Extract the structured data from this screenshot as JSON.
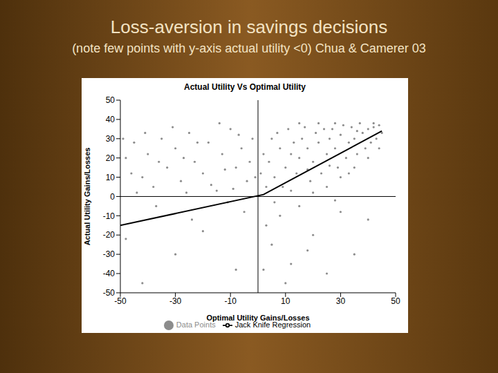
{
  "slide": {
    "title": "Loss-aversion in savings decisions",
    "note": "(note few points with y-axis actual utility <0) Chua & Camerer 03"
  },
  "chart_data": {
    "type": "scatter",
    "title": "Actual Utility Vs Optimal Utility",
    "x_label": "Optimal Utility Gains/Losses",
    "y_label": "Actual Utility Gains/Losses",
    "xlim": [
      -50,
      50
    ],
    "ylim": [
      -50,
      50
    ],
    "xticks": [
      -50,
      -30,
      -10,
      10,
      30,
      50
    ],
    "yticks": [
      -50,
      -40,
      -30,
      -20,
      -10,
      0,
      10,
      20,
      30,
      40,
      50
    ],
    "grid": false,
    "legend": "bottom",
    "series": [
      {
        "name": "Data Points",
        "type": "scatter",
        "marker": "circle",
        "color": "#8c8c8c",
        "x": [
          40,
          42,
          44,
          38,
          36,
          35,
          33,
          30,
          28,
          26,
          25,
          24,
          22,
          20,
          18,
          16,
          15,
          14,
          12,
          10,
          8,
          6,
          5,
          4,
          3,
          2,
          1,
          45,
          43,
          41,
          39,
          37,
          34,
          32,
          31,
          29,
          27,
          23,
          21,
          19,
          17,
          13,
          11,
          9,
          7,
          44,
          40,
          35,
          30,
          25,
          20,
          15,
          12,
          28,
          42,
          36,
          33,
          26,
          18,
          22,
          -48,
          -45,
          -42,
          -40,
          -38,
          -35,
          -33,
          -30,
          -28,
          -25,
          -23,
          -20,
          -18,
          -15,
          -13,
          -10,
          -8,
          -6,
          -4,
          -2,
          -46,
          -44,
          -36,
          -31,
          -27,
          -22,
          -17,
          -12,
          -7,
          -3,
          -49,
          -41,
          -26,
          -14,
          -9,
          -1,
          -37,
          -24,
          -11,
          -5,
          3,
          5,
          8,
          12,
          15,
          20,
          25,
          30,
          35,
          10,
          40,
          6,
          18,
          28,
          2,
          -48,
          -42,
          -30,
          -20,
          -8
        ],
        "values": [
          35,
          36,
          37,
          33,
          34,
          30,
          28,
          32,
          25,
          30,
          22,
          35,
          28,
          18,
          25,
          30,
          20,
          12,
          22,
          15,
          25,
          10,
          30,
          18,
          5,
          22,
          12,
          33,
          30,
          28,
          25,
          38,
          36,
          20,
          37,
          15,
          35,
          12,
          33,
          8,
          36,
          28,
          35,
          5,
          33,
          25,
          20,
          15,
          10,
          5,
          2,
          38,
          3,
          38,
          38,
          22,
          12,
          16,
          14,
          38,
          20,
          28,
          10,
          22,
          5,
          30,
          15,
          25,
          8,
          33,
          18,
          12,
          28,
          3,
          22,
          35,
          15,
          25,
          8,
          30,
          12,
          2,
          18,
          36,
          20,
          28,
          6,
          14,
          32,
          18,
          30,
          33,
          2,
          38,
          4,
          10,
          -5,
          -12,
          -3,
          -8,
          -15,
          -25,
          -10,
          -35,
          -5,
          -20,
          -40,
          -8,
          -30,
          -45,
          -12,
          -3,
          -28,
          -2,
          -38,
          -22,
          -45,
          -30,
          -18,
          -38
        ]
      },
      {
        "name": "Jack Knife Regression",
        "type": "line",
        "marker": "none",
        "line_style": "solid",
        "color": "#000000",
        "x": [
          -50,
          2,
          45
        ],
        "values": [
          -15,
          1,
          34
        ]
      }
    ]
  }
}
